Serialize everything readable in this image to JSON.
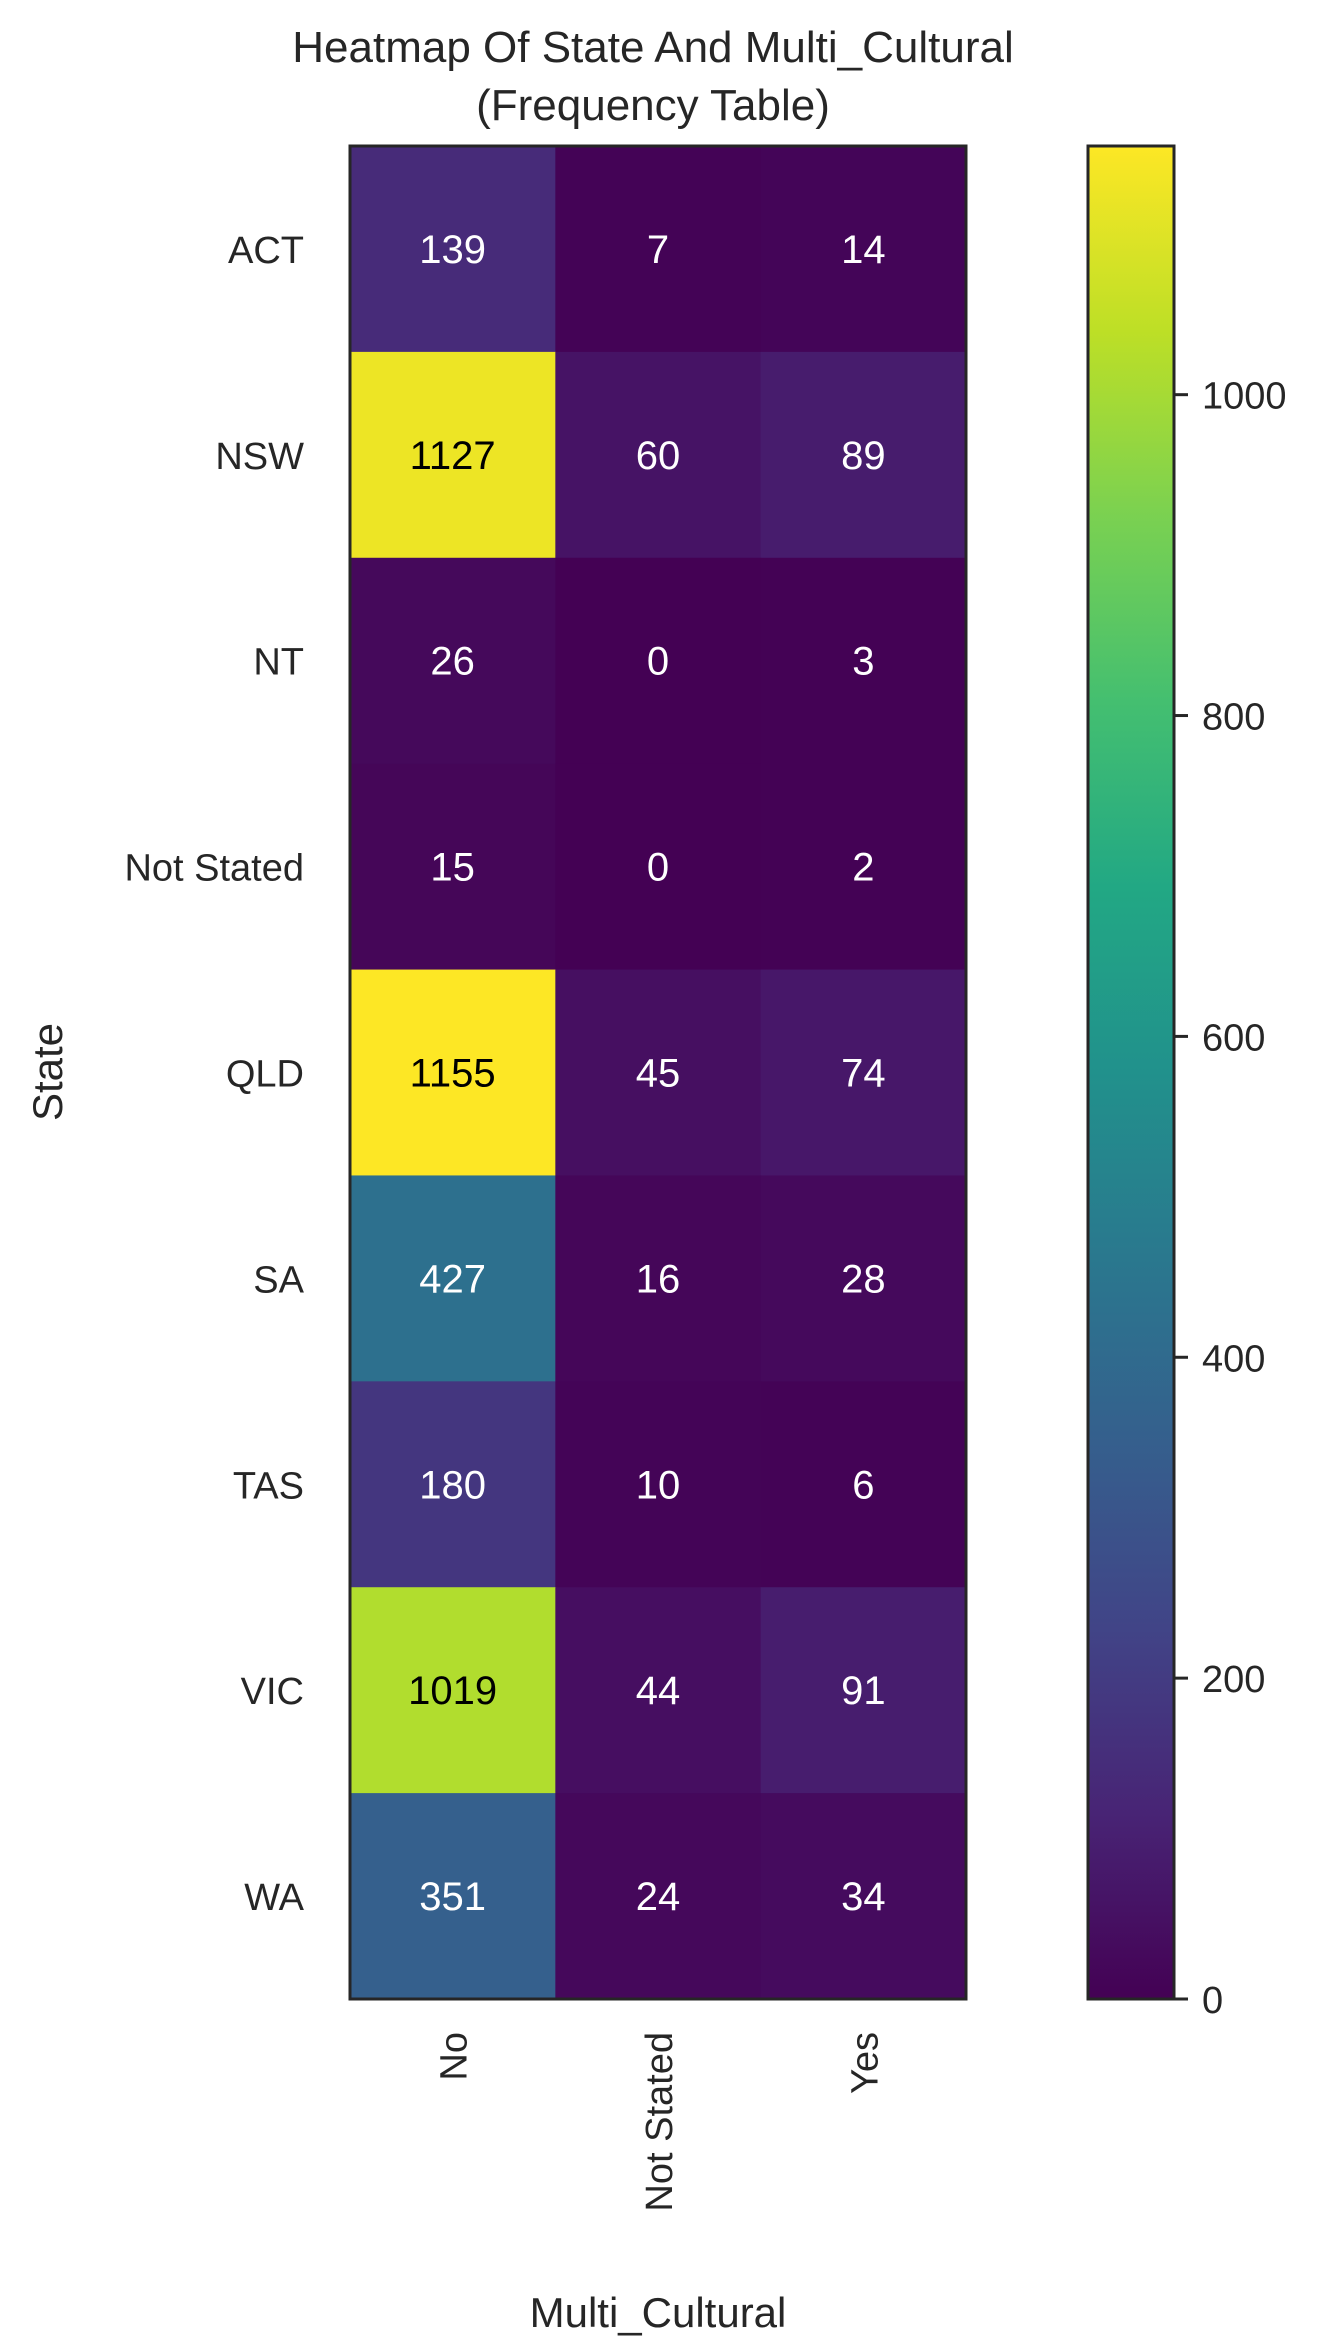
{
  "chart_data": {
    "type": "heatmap",
    "title": "Heatmap Of State And Multi_Cultural",
    "subtitle": "(Frequency Table)",
    "xlabel": "Multi_Cultural",
    "ylabel": "State",
    "x_categories": [
      "No",
      "Not Stated",
      "Yes"
    ],
    "y_categories": [
      "ACT",
      "NSW",
      "NT",
      "Not Stated",
      "QLD",
      "SA",
      "TAS",
      "VIC",
      "WA"
    ],
    "values": [
      [
        139,
        7,
        14
      ],
      [
        1127,
        60,
        89
      ],
      [
        26,
        0,
        3
      ],
      [
        15,
        0,
        2
      ],
      [
        1155,
        45,
        74
      ],
      [
        427,
        16,
        28
      ],
      [
        180,
        10,
        6
      ],
      [
        1019,
        44,
        91
      ],
      [
        351,
        24,
        34
      ]
    ],
    "colormap": "viridis",
    "vmin": 0,
    "vmax": 1155,
    "colorbar_ticks": [
      0,
      200,
      400,
      600,
      800,
      1000
    ],
    "annotation_light_color": "#ffffff",
    "annotation_dark_color": "#000000"
  }
}
